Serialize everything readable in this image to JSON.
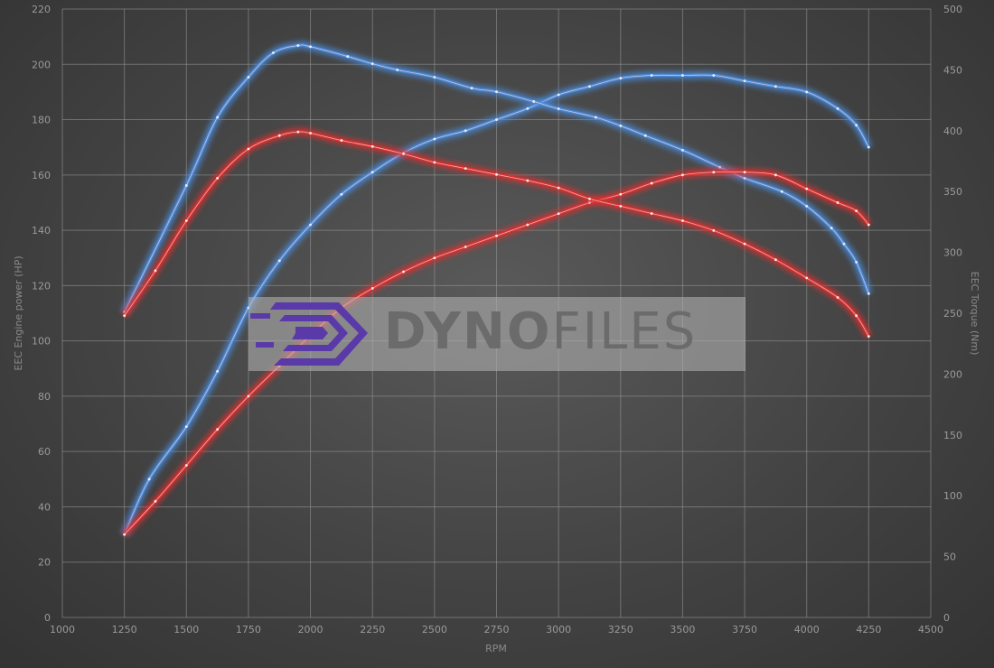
{
  "chart_data": {
    "type": "line",
    "xlabel": "RPM",
    "ylabel_left": "EEC Engine power (HP)",
    "ylabel_right": "EEC Torque (Nm)",
    "xlim": [
      1000,
      4500
    ],
    "ylim_left": [
      0,
      220
    ],
    "ylim_right": [
      0,
      500
    ],
    "x_ticks": [
      1000,
      1250,
      1500,
      1750,
      2000,
      2250,
      2500,
      2750,
      3000,
      3250,
      3500,
      3750,
      4000,
      4250,
      4500
    ],
    "y_left_ticks": [
      0,
      20,
      40,
      60,
      80,
      100,
      120,
      140,
      160,
      180,
      200,
      220
    ],
    "y_right_ticks": [
      0,
      50,
      100,
      150,
      200,
      250,
      300,
      350,
      400,
      450,
      500
    ],
    "grid": true,
    "series": [
      {
        "axis": "left",
        "color": "#4a8de0",
        "x": [
          1250,
          1350,
          1500,
          1625,
          1750,
          1875,
          2000,
          2125,
          2250,
          2375,
          2500,
          2625,
          2750,
          2875,
          3000,
          3125,
          3250,
          3375,
          3500,
          3625,
          3750,
          3875,
          4000,
          4125,
          4200,
          4250
        ],
        "values": [
          30,
          50,
          69,
          89,
          112,
          129,
          142,
          153,
          161,
          168,
          173,
          176,
          180,
          184,
          189,
          192,
          195,
          196,
          196,
          196,
          194,
          192,
          190,
          184,
          178,
          170
        ]
      },
      {
        "axis": "right",
        "color": "#4a8de0",
        "x": [
          1250,
          1500,
          1625,
          1750,
          1850,
          1950,
          2000,
          2150,
          2250,
          2350,
          2500,
          2650,
          2750,
          2900,
          3000,
          3150,
          3250,
          3350,
          3500,
          3650,
          3750,
          3900,
          4000,
          4100,
          4150,
          4200,
          4250
        ],
        "values": [
          251,
          355,
          411,
          444,
          464,
          470,
          469,
          461,
          455,
          450,
          444,
          435,
          432,
          424,
          418,
          411,
          404,
          396,
          384,
          370,
          361,
          350,
          338,
          320,
          307,
          292,
          266
        ]
      },
      {
        "axis": "left",
        "color": "#e03030",
        "x": [
          1250,
          1375,
          1500,
          1625,
          1750,
          1875,
          2000,
          2125,
          2250,
          2375,
          2500,
          2625,
          2750,
          2875,
          3000,
          3125,
          3250,
          3375,
          3500,
          3625,
          3750,
          3875,
          4000,
          4125,
          4200,
          4250
        ],
        "values": [
          30,
          42,
          55,
          68,
          80,
          91,
          102,
          112,
          119,
          125,
          130,
          134,
          138,
          142,
          146,
          150,
          153,
          157,
          160,
          161,
          161,
          160,
          155,
          150,
          147,
          142
        ]
      },
      {
        "axis": "right",
        "color": "#e03030",
        "x": [
          1250,
          1375,
          1500,
          1625,
          1750,
          1875,
          1950,
          2000,
          2125,
          2250,
          2375,
          2500,
          2625,
          2750,
          2875,
          3000,
          3125,
          3250,
          3375,
          3500,
          3625,
          3750,
          3875,
          4000,
          4125,
          4200,
          4250
        ],
        "values": [
          248,
          285,
          326,
          361,
          385,
          396,
          399,
          398,
          392,
          387,
          381,
          374,
          369,
          364,
          359,
          353,
          344,
          338,
          332,
          326,
          318,
          307,
          294,
          279,
          263,
          248,
          231
        ]
      }
    ]
  },
  "watermark": {
    "text_bold": "DYNO",
    "text_light": "FILES",
    "logo_color": "#5a3aa8"
  }
}
